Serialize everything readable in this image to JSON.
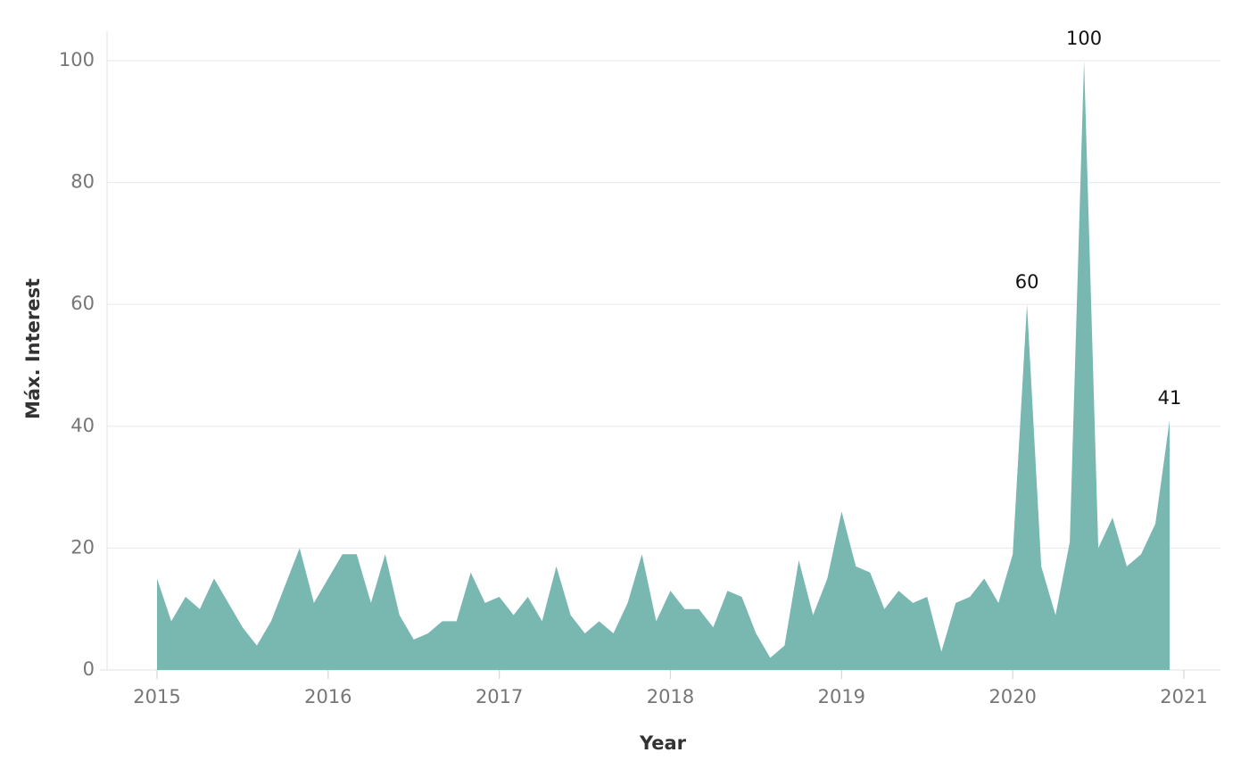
{
  "chart_data": {
    "type": "area",
    "xlabel": "Year",
    "ylabel": "Máx. Interest",
    "ylim": [
      0,
      100
    ],
    "y_ticks": [
      0,
      20,
      40,
      60,
      80,
      100
    ],
    "x_ticks": [
      "2015",
      "2016",
      "2017",
      "2018",
      "2019",
      "2020",
      "2021"
    ],
    "grid": "horizontal",
    "color": "#79b7b1",
    "series": [
      {
        "x": [
          "2015-01",
          "2015-02",
          "2015-03",
          "2015-04",
          "2015-05",
          "2015-06",
          "2015-07",
          "2015-08",
          "2015-09",
          "2015-10",
          "2015-11",
          "2015-12",
          "2016-01",
          "2016-02",
          "2016-03",
          "2016-04",
          "2016-05",
          "2016-06",
          "2016-07",
          "2016-08",
          "2016-09",
          "2016-10",
          "2016-11",
          "2016-12",
          "2017-01",
          "2017-02",
          "2017-03",
          "2017-04",
          "2017-05",
          "2017-06",
          "2017-07",
          "2017-08",
          "2017-09",
          "2017-10",
          "2017-11",
          "2017-12",
          "2018-01",
          "2018-02",
          "2018-03",
          "2018-04",
          "2018-05",
          "2018-06",
          "2018-07",
          "2018-08",
          "2018-09",
          "2018-10",
          "2018-11",
          "2018-12",
          "2019-01",
          "2019-02",
          "2019-03",
          "2019-04",
          "2019-05",
          "2019-06",
          "2019-07",
          "2019-08",
          "2019-09",
          "2019-10",
          "2019-11",
          "2019-12",
          "2020-01",
          "2020-02",
          "2020-03",
          "2020-04",
          "2020-05",
          "2020-06",
          "2020-07",
          "2020-08",
          "2020-09",
          "2020-10",
          "2020-11",
          "2020-12"
        ],
        "values": [
          15,
          8,
          12,
          10,
          15,
          11,
          7,
          4,
          8,
          14,
          20,
          11,
          15,
          19,
          19,
          11,
          19,
          9,
          5,
          6,
          8,
          8,
          16,
          11,
          12,
          9,
          12,
          8,
          17,
          9,
          6,
          8,
          6,
          11,
          19,
          8,
          13,
          10,
          10,
          7,
          13,
          12,
          6,
          2,
          4,
          18,
          9,
          15,
          26,
          17,
          16,
          10,
          13,
          11,
          12,
          3,
          11,
          12,
          15,
          11,
          19,
          60,
          17,
          9,
          21,
          100,
          20,
          25,
          17,
          19,
          24,
          41
        ]
      }
    ],
    "annotations": [
      {
        "x": "2020-02",
        "value": 60,
        "text": "60"
      },
      {
        "x": "2020-06",
        "value": 100,
        "text": "100"
      },
      {
        "x": "2020-12",
        "value": 41,
        "text": "41"
      }
    ]
  }
}
